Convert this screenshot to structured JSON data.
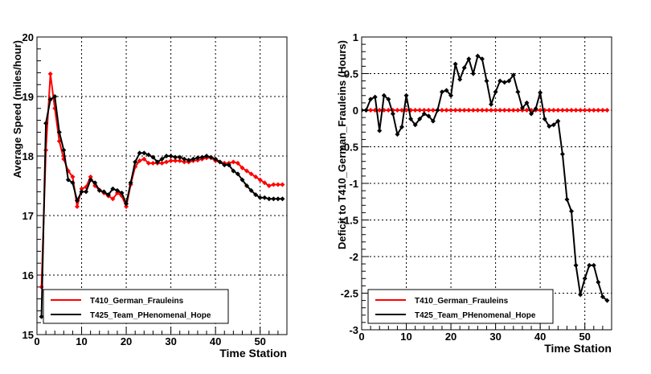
{
  "chart_data": [
    {
      "type": "line",
      "title": "",
      "xlabel": "Time Station",
      "ylabel": "Average Speed (miles/hour)",
      "xlim": [
        0,
        56
      ],
      "ylim": [
        15,
        20
      ],
      "xticks": [
        0,
        10,
        20,
        30,
        40,
        50
      ],
      "yticks": [
        15,
        16,
        17,
        18,
        19,
        20
      ],
      "xtick_labels": [
        "0",
        "10",
        "20",
        "30",
        "40",
        "50"
      ],
      "ytick_labels": [
        "15",
        "16",
        "17",
        "18",
        "19",
        "20"
      ],
      "grid": true,
      "legend_position": "bottom-left",
      "series": [
        {
          "name": "T410_German_Frauleins",
          "color": "#ff0000",
          "x": [
            1,
            2,
            3,
            4,
            5,
            6,
            7,
            8,
            9,
            10,
            11,
            12,
            13,
            14,
            15,
            16,
            17,
            18,
            19,
            20,
            21,
            22,
            23,
            24,
            25,
            26,
            27,
            28,
            29,
            30,
            31,
            32,
            33,
            34,
            35,
            36,
            37,
            38,
            39,
            40,
            41,
            42,
            43,
            44,
            45,
            46,
            47,
            48,
            49,
            50,
            51,
            52,
            53,
            54,
            55
          ],
          "values": [
            15.8,
            18.1,
            19.38,
            18.8,
            18.25,
            17.95,
            17.75,
            17.65,
            17.15,
            17.45,
            17.48,
            17.65,
            17.5,
            17.43,
            17.38,
            17.33,
            17.28,
            17.38,
            17.33,
            17.15,
            17.52,
            17.82,
            17.92,
            17.95,
            17.88,
            17.88,
            17.88,
            17.88,
            17.9,
            17.92,
            17.92,
            17.92,
            17.9,
            17.9,
            17.92,
            17.93,
            17.95,
            17.97,
            17.97,
            17.92,
            17.9,
            17.88,
            17.88,
            17.9,
            17.88,
            17.8,
            17.75,
            17.7,
            17.65,
            17.6,
            17.55,
            17.5,
            17.52,
            17.52,
            17.52
          ]
        },
        {
          "name": "T425_Team_PHenomenal_Hope",
          "color": "#000000",
          "x": [
            1,
            2,
            3,
            4,
            5,
            6,
            7,
            8,
            9,
            10,
            11,
            12,
            13,
            14,
            15,
            16,
            17,
            18,
            19,
            20,
            21,
            22,
            23,
            24,
            25,
            26,
            27,
            28,
            29,
            30,
            31,
            32,
            33,
            34,
            35,
            36,
            37,
            38,
            39,
            40,
            41,
            42,
            43,
            44,
            45,
            46,
            47,
            48,
            49,
            50,
            51,
            52,
            53,
            54,
            55
          ],
          "values": [
            15.3,
            18.55,
            18.95,
            19.0,
            18.4,
            18.1,
            17.6,
            17.55,
            17.25,
            17.4,
            17.4,
            17.6,
            17.55,
            17.42,
            17.4,
            17.35,
            17.45,
            17.42,
            17.38,
            17.2,
            17.55,
            17.9,
            18.05,
            18.05,
            18.02,
            17.98,
            17.9,
            17.95,
            18.0,
            18.0,
            17.98,
            17.98,
            17.95,
            17.93,
            17.95,
            17.97,
            17.98,
            18.0,
            17.98,
            17.95,
            17.9,
            17.85,
            17.85,
            17.75,
            17.7,
            17.6,
            17.5,
            17.42,
            17.35,
            17.3,
            17.3,
            17.28,
            17.28,
            17.28,
            17.28
          ]
        }
      ]
    },
    {
      "type": "line",
      "title": "",
      "xlabel": "Time Station",
      "ylabel": "Deficit to T410_German_Frauleins (Hours)",
      "xlim": [
        0,
        56
      ],
      "ylim": [
        -3,
        1
      ],
      "xticks": [
        0,
        10,
        20,
        30,
        40,
        50
      ],
      "yticks": [
        -3,
        -2.5,
        -2,
        -1.5,
        -1,
        -0.5,
        0,
        0.5,
        1
      ],
      "xtick_labels": [
        "0",
        "10",
        "20",
        "30",
        "40",
        "50"
      ],
      "ytick_labels": [
        "-3",
        "-2.5",
        "-2",
        "-1.5",
        "-1",
        "-0.5",
        "0",
        "0.5",
        "1"
      ],
      "grid": true,
      "legend_position": "bottom-left",
      "series": [
        {
          "name": "T410_German_Frauleins",
          "color": "#ff0000",
          "x": [
            1,
            2,
            3,
            4,
            5,
            6,
            7,
            8,
            9,
            10,
            11,
            12,
            13,
            14,
            15,
            16,
            17,
            18,
            19,
            20,
            21,
            22,
            23,
            24,
            25,
            26,
            27,
            28,
            29,
            30,
            31,
            32,
            33,
            34,
            35,
            36,
            37,
            38,
            39,
            40,
            41,
            42,
            43,
            44,
            45,
            46,
            47,
            48,
            49,
            50,
            51,
            52,
            53,
            54,
            55
          ],
          "values": [
            0,
            0,
            0,
            0,
            0,
            0,
            0,
            0,
            0,
            0,
            0,
            0,
            0,
            0,
            0,
            0,
            0,
            0,
            0,
            0,
            0,
            0,
            0,
            0,
            0,
            0,
            0,
            0,
            0,
            0,
            0,
            0,
            0,
            0,
            0,
            0,
            0,
            0,
            0,
            0,
            0,
            0,
            0,
            0,
            0,
            0,
            0,
            0,
            0,
            0,
            0,
            0,
            0,
            0,
            0
          ]
        },
        {
          "name": "T425_Team_PHenomenal_Hope",
          "color": "#000000",
          "x": [
            0,
            1,
            2,
            3,
            4,
            5,
            6,
            7,
            8,
            9,
            10,
            11,
            12,
            13,
            14,
            15,
            16,
            17,
            18,
            19,
            20,
            21,
            22,
            23,
            24,
            25,
            26,
            27,
            28,
            29,
            30,
            31,
            32,
            33,
            34,
            35,
            36,
            37,
            38,
            39,
            40,
            41,
            42,
            43,
            44,
            45,
            46,
            47,
            48,
            49,
            50,
            51,
            52,
            53,
            54,
            55
          ],
          "values": [
            0,
            0,
            0.15,
            0.18,
            -0.28,
            0.2,
            0.15,
            -0.05,
            -0.33,
            -0.23,
            0.2,
            -0.12,
            -0.2,
            -0.12,
            -0.05,
            -0.08,
            -0.15,
            0,
            0.25,
            0.27,
            0.2,
            0.63,
            0.42,
            0.58,
            0.7,
            0.5,
            0.74,
            0.7,
            0.4,
            0.08,
            0.25,
            0.4,
            0.38,
            0.4,
            0.48,
            0.25,
            0.03,
            0.1,
            -0.05,
            0.02,
            0.24,
            -0.12,
            -0.22,
            -0.2,
            -0.15,
            -0.6,
            -1.22,
            -1.38,
            -2.12,
            -2.52,
            -2.3,
            -2.12,
            -2.12,
            -2.35,
            -2.55,
            -2.6
          ]
        }
      ]
    }
  ]
}
